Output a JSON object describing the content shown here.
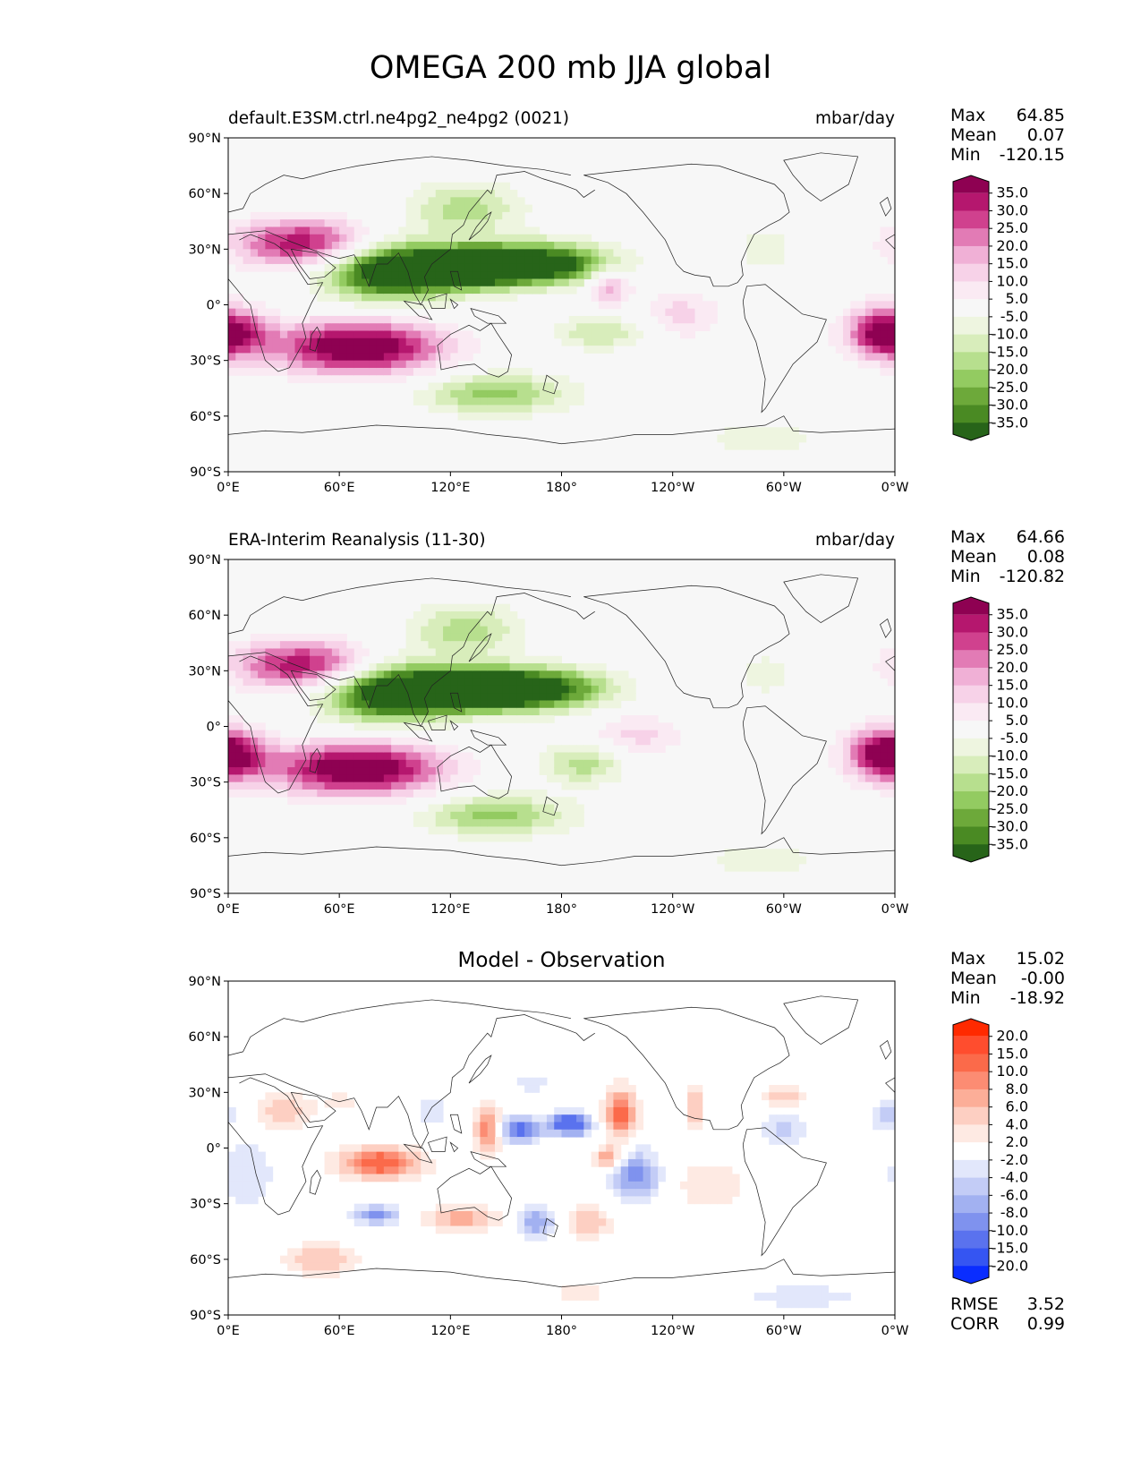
{
  "title": "OMEGA 200 mb JJA global",
  "panels": [
    {
      "id": "model",
      "left_title": "default.E3SM.ctrl.ne4pg2_ne4pg2 (0021)",
      "right_title": "mbar/day",
      "center_title": "",
      "stats": [
        {
          "label": "Max",
          "value": "64.85"
        },
        {
          "label": "Mean",
          "value": "0.07"
        },
        {
          "label": "Min",
          "value": "-120.15"
        }
      ],
      "colorbar": "omega"
    },
    {
      "id": "obs",
      "left_title": "ERA-Interim Reanalysis (11-30)",
      "right_title": "mbar/day",
      "center_title": "",
      "stats": [
        {
          "label": "Max",
          "value": "64.66"
        },
        {
          "label": "Mean",
          "value": "0.08"
        },
        {
          "label": "Min",
          "value": "-120.82"
        }
      ],
      "colorbar": "omega"
    },
    {
      "id": "diff",
      "left_title": "",
      "right_title": "",
      "center_title": "Model - Observation",
      "stats": [
        {
          "label": "Max",
          "value": "15.02"
        },
        {
          "label": "Mean",
          "value": "-0.00"
        },
        {
          "label": "Min",
          "value": "-18.92"
        }
      ],
      "extra_stats": [
        {
          "label": "RMSE",
          "value": "3.52"
        },
        {
          "label": "CORR",
          "value": "0.99"
        }
      ],
      "colorbar": "diff"
    }
  ],
  "axes": {
    "lat_ticks": [
      "90°N",
      "60°N",
      "30°N",
      "0°",
      "30°S",
      "60°S",
      "90°S"
    ],
    "lon_ticks": [
      "0°E",
      "60°E",
      "120°E",
      "180°",
      "120°W",
      "60°W",
      "0°W"
    ]
  },
  "colorbars": {
    "omega": {
      "labels": [
        "35.0",
        "30.0",
        "25.0",
        "20.0",
        "15.0",
        "10.0",
        "5.0",
        "-5.0",
        "-10.0",
        "-15.0",
        "-20.0",
        "-25.0",
        "-30.0",
        "-35.0"
      ],
      "colors": [
        "#8e0152",
        "#b5176e",
        "#d0418e",
        "#e27bb5",
        "#f0b0d6",
        "#f7d2e8",
        "#faeaf3",
        "#f7f7f7",
        "#eef5e0",
        "#d8edbb",
        "#b7df8e",
        "#93cb61",
        "#6da93a",
        "#4a8a23",
        "#276419"
      ]
    },
    "diff": {
      "labels": [
        "20.0",
        "15.0",
        "10.0",
        "8.0",
        "6.0",
        "4.0",
        "2.0",
        "-2.0",
        "-4.0",
        "-6.0",
        "-8.0",
        "-10.0",
        "-15.0",
        "-20.0"
      ],
      "colors": [
        "#ff2a00",
        "#ff4d2e",
        "#fb6a4a",
        "#fc8c73",
        "#fcae98",
        "#fdcfc2",
        "#feeae3",
        "#ffffff",
        "#e2e7fb",
        "#c3ccf6",
        "#a2b1f1",
        "#7f92ee",
        "#5a72ee",
        "#3555f2",
        "#0a2dff"
      ]
    }
  },
  "chart_data": [
    {
      "type": "heatmap",
      "title": "default.E3SM.ctrl.ne4pg2_ne4pg2 (0021)",
      "units": "mbar/day",
      "xlim": [
        0,
        360
      ],
      "ylim": [
        -90,
        90
      ],
      "features": [
        {
          "lon": 88,
          "lat": 18,
          "rlon": 35,
          "rlat": 15,
          "v": -48
        },
        {
          "lon": 130,
          "lat": 20,
          "rlon": 28,
          "rlat": 10,
          "v": -48
        },
        {
          "lon": 168,
          "lat": 22,
          "rlon": 38,
          "rlat": 11,
          "v": -45
        },
        {
          "lon": 128,
          "lat": 52,
          "rlon": 30,
          "rlat": 14,
          "v": -18
        },
        {
          "lon": 40,
          "lat": 33,
          "rlon": 36,
          "rlat": 13,
          "v": 35
        },
        {
          "lon": 70,
          "lat": -23,
          "rlon": 45,
          "rlat": 14,
          "v": 45
        },
        {
          "lon": 2,
          "lat": -15,
          "rlon": 20,
          "rlat": 13,
          "v": 22
        },
        {
          "lon": 352,
          "lat": -15,
          "rlon": 20,
          "rlat": 14,
          "v": 25
        },
        {
          "lon": 145,
          "lat": -48,
          "rlon": 40,
          "rlat": 11,
          "v": -22
        },
        {
          "lon": 200,
          "lat": -15,
          "rlon": 25,
          "rlat": 9,
          "v": -15
        },
        {
          "lon": 205,
          "lat": 10,
          "rlon": 12,
          "rlat": 10,
          "v": 20
        },
        {
          "lon": 245,
          "lat": -5,
          "rlon": 20,
          "rlat": 13,
          "v": 12
        },
        {
          "lon": 270,
          "lat": -72,
          "rlon": 60,
          "rlat": 14,
          "v": -8
        },
        {
          "lon": 225,
          "lat": -72,
          "rlon": 40,
          "rlat": 13,
          "v": 8
        },
        {
          "lon": 290,
          "lat": 30,
          "rlon": 14,
          "rlat": 10,
          "v": -10
        }
      ]
    },
    {
      "type": "heatmap",
      "title": "ERA-Interim Reanalysis (11-30)",
      "units": "mbar/day",
      "xlim": [
        0,
        360
      ],
      "ylim": [
        -90,
        90
      ],
      "features": [
        {
          "lon": 88,
          "lat": 18,
          "rlon": 35,
          "rlat": 15,
          "v": -48
        },
        {
          "lon": 130,
          "lat": 20,
          "rlon": 28,
          "rlat": 10,
          "v": -48
        },
        {
          "lon": 165,
          "lat": 20,
          "rlon": 38,
          "rlat": 11,
          "v": -45
        },
        {
          "lon": 128,
          "lat": 52,
          "rlon": 30,
          "rlat": 14,
          "v": -18
        },
        {
          "lon": 40,
          "lat": 33,
          "rlon": 36,
          "rlat": 13,
          "v": 35
        },
        {
          "lon": 70,
          "lat": -23,
          "rlon": 45,
          "rlat": 14,
          "v": 45
        },
        {
          "lon": 2,
          "lat": -15,
          "rlon": 20,
          "rlat": 13,
          "v": 25
        },
        {
          "lon": 352,
          "lat": -15,
          "rlon": 20,
          "rlat": 14,
          "v": 25
        },
        {
          "lon": 145,
          "lat": -48,
          "rlon": 40,
          "rlat": 11,
          "v": -22
        },
        {
          "lon": 192,
          "lat": -20,
          "rlon": 22,
          "rlat": 11,
          "v": -18
        },
        {
          "lon": 220,
          "lat": -5,
          "rlon": 25,
          "rlat": 12,
          "v": 12
        },
        {
          "lon": 270,
          "lat": -72,
          "rlon": 60,
          "rlat": 14,
          "v": -8
        },
        {
          "lon": 225,
          "lat": -72,
          "rlon": 40,
          "rlat": 13,
          "v": 8
        },
        {
          "lon": 290,
          "lat": 28,
          "rlon": 14,
          "rlat": 10,
          "v": -10
        }
      ]
    },
    {
      "type": "heatmap",
      "title": "Model - Observation",
      "units": "mbar/day",
      "xlim": [
        0,
        360
      ],
      "ylim": [
        -90,
        90
      ],
      "features": [
        {
          "lon": 82,
          "lat": -8,
          "rlon": 22,
          "rlat": 8,
          "v": 13
        },
        {
          "lon": 30,
          "lat": 20,
          "rlon": 15,
          "rlat": 10,
          "v": 6
        },
        {
          "lon": 140,
          "lat": 10,
          "rlon": 7,
          "rlat": 14,
          "v": 10
        },
        {
          "lon": 158,
          "lat": 10,
          "rlon": 11,
          "rlat": 7,
          "v": -12
        },
        {
          "lon": 185,
          "lat": 13,
          "rlon": 11,
          "rlat": 6,
          "v": -15
        },
        {
          "lon": 212,
          "lat": 18,
          "rlon": 9,
          "rlat": 14,
          "v": 11
        },
        {
          "lon": 205,
          "lat": -5,
          "rlon": 8,
          "rlat": 6,
          "v": 8
        },
        {
          "lon": 220,
          "lat": -15,
          "rlon": 13,
          "rlat": 14,
          "v": -9
        },
        {
          "lon": 80,
          "lat": -36,
          "rlon": 12,
          "rlat": 5,
          "v": -9
        },
        {
          "lon": 10,
          "lat": -15,
          "rlon": 15,
          "rlat": 20,
          "v": -4
        },
        {
          "lon": 125,
          "lat": -38,
          "rlon": 20,
          "rlat": 7,
          "v": 7
        },
        {
          "lon": 167,
          "lat": -40,
          "rlon": 10,
          "rlat": 8,
          "v": -8
        },
        {
          "lon": 195,
          "lat": -40,
          "rlon": 12,
          "rlat": 9,
          "v": 6
        },
        {
          "lon": 50,
          "lat": -60,
          "rlon": 20,
          "rlat": 9,
          "v": 6
        },
        {
          "lon": 260,
          "lat": -20,
          "rlon": 18,
          "rlat": 14,
          "v": 4
        },
        {
          "lon": 252,
          "lat": 22,
          "rlon": 5,
          "rlat": 10,
          "v": 7
        },
        {
          "lon": 300,
          "lat": 10,
          "rlon": 12,
          "rlat": 8,
          "v": -5
        },
        {
          "lon": 300,
          "lat": 28,
          "rlon": 10,
          "rlat": 6,
          "v": 6
        },
        {
          "lon": 355,
          "lat": 18,
          "rlon": 8,
          "rlat": 8,
          "v": -5
        },
        {
          "lon": 310,
          "lat": -80,
          "rlon": 40,
          "rlat": 8,
          "v": -3
        },
        {
          "lon": 190,
          "lat": -78,
          "rlon": 20,
          "rlat": 6,
          "v": 3
        },
        {
          "lon": 110,
          "lat": 20,
          "rlon": 12,
          "rlat": 10,
          "v": -3
        },
        {
          "lon": 165,
          "lat": 35,
          "rlon": 12,
          "rlat": 6,
          "v": -3
        },
        {
          "lon": 60,
          "lat": 25,
          "rlon": 10,
          "rlat": 6,
          "v": 3
        }
      ]
    }
  ]
}
